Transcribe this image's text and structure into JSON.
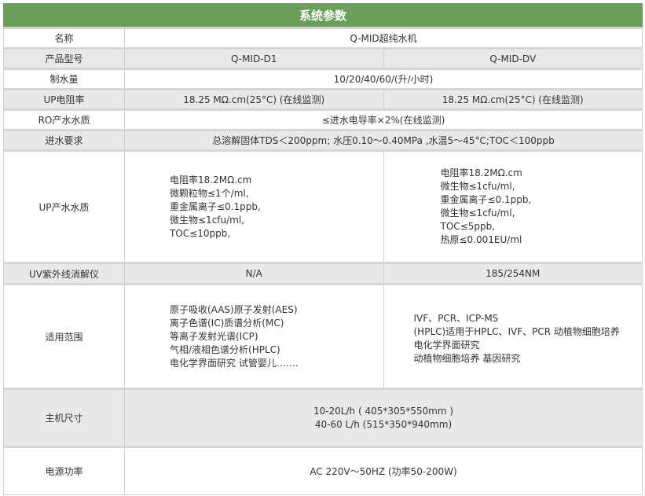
{
  "title": "系统参数",
  "accent": "#6b9e5c",
  "rows": {
    "name": {
      "label": "名称",
      "value": "Q-MID超纯水机"
    },
    "model": {
      "label": "产品型号",
      "d1": "Q-MID-D1",
      "dv": "Q-MID-DV"
    },
    "output": {
      "label": "制水量",
      "value": "10/20/40/60/(升/小时)"
    },
    "up_res": {
      "label": "UP电阻率",
      "d1": "18.25 MΩ.cm(25°C) (在线监测)",
      "dv": "18.25 MΩ.cm(25°C) (在线监测)"
    },
    "ro": {
      "label": "RO产水水质",
      "value": "≤进水电导率×2%(在线监测)"
    },
    "inlet": {
      "label": "进水要求",
      "value": "总溶解固体TDS＜200ppm; 水压0.10～0.40MPa ,水温5～45°C;TOC＜100ppb"
    },
    "up_quality": {
      "label": "UP产水水质",
      "d1": [
        "电阻率18.2MΩ.cm",
        "微颗粒物≤1个/ml,",
        "重金属离子≤0.1ppb,",
        "微生物≤1cfu/ml,",
        "TOC≤10ppb,"
      ],
      "dv": [
        "电阻率18.2MΩ.cm",
        "微生物≤1cfu/ml,",
        "重金属离子≤0.1ppb,",
        "微生物≤1cfu/ml,",
        "TOC≤5ppb,",
        "热原≤0.001EU/ml"
      ]
    },
    "uv": {
      "label": "UV紫外线消解仪",
      "d1": "N/A",
      "dv": "185/254NM"
    },
    "scope": {
      "label": "适用范围",
      "d1": [
        "原子吸收(AAS)原子发射(AES)",
        "离子色谱(IC)质谱分析(MC)",
        "等离子发射光谱(ICP)",
        "气相/液相色谱分析(HPLC)",
        "电化学界面研究 试管婴儿……."
      ],
      "dv": [
        "IVF、PCR、ICP-MS",
        "(HPLC)适用于HPLC、IVF、PCR 动植物细胞培养",
        "电化学界面研究",
        "动植物细胞培养 基因研究"
      ]
    },
    "size": {
      "label": "主机尺寸",
      "lines": [
        "10-20L/h ( 405*305*550mm )",
        "40-60 L/h (515*350*940mm)"
      ]
    },
    "power": {
      "label": "电源功率",
      "value": "AC 220V～50HZ (功率50-200W)"
    }
  }
}
